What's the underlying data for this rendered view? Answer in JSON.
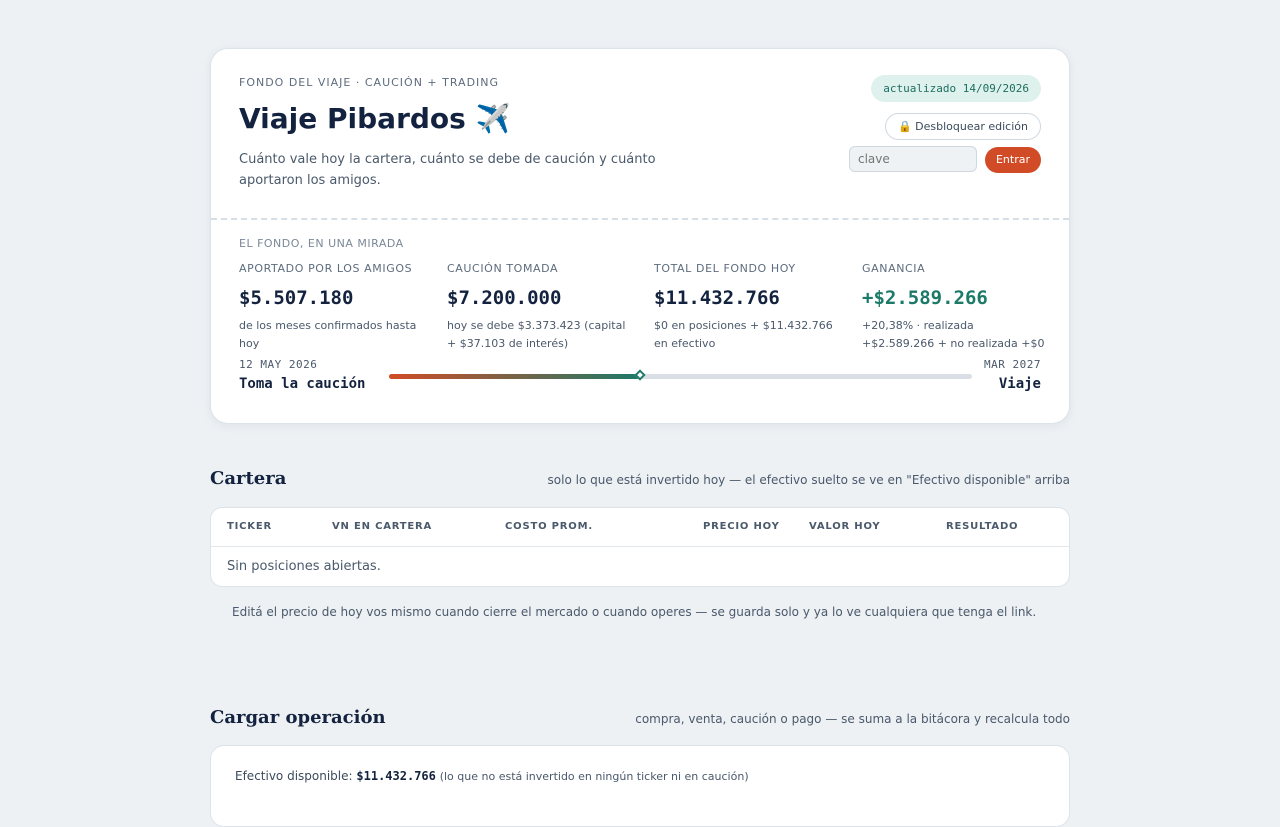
{
  "hero": {
    "eyebrow": "FONDO DEL VIAJE · CAUCIÓN + TRADING",
    "title": "Viaje Pibardos ✈️",
    "subtitle": "Cuánto vale hoy la cartera, cuánto se debe de caución y cuánto aportaron los amigos.",
    "badge": "actualizado 14/09/2026",
    "unlock_label": "🔒 Desbloquear edición",
    "password_placeholder": "clave",
    "enter_label": "Entrar"
  },
  "summary": {
    "label": "EL FONDO, EN UNA MIRADA",
    "stats": [
      {
        "label": "APORTADO POR LOS AMIGOS",
        "value": "$5.507.180",
        "note": "de los meses confirmados hasta hoy"
      },
      {
        "label": "CAUCIÓN TOMADA",
        "value": "$7.200.000",
        "note": "hoy se debe $3.373.423 (capital + $37.103 de interés)"
      },
      {
        "label": "TOTAL DEL FONDO HOY",
        "value": "$11.432.766",
        "note": "$0 en posiciones + $11.432.766 en efectivo"
      },
      {
        "label": "GANANCIA",
        "value": "+$2.589.266",
        "note": "+20,38% · realizada +$2.589.266 + no realizada +$0"
      }
    ],
    "colors": {
      "accent_green": "#1c7a68",
      "accent_orange": "#d14c26"
    }
  },
  "timeline": {
    "start_date": "12 MAY 2026",
    "start_label": "Toma la caución",
    "end_date": "MAR 2027",
    "end_label": "Viaje",
    "progress": 0.43
  },
  "cartera": {
    "title": "Cartera",
    "note": "solo lo que está invertido hoy — el efectivo suelto se ve en \"Efectivo disponible\" arriba",
    "columns": [
      "TICKER",
      "VN EN CARTERA",
      "COSTO PROM.",
      "PRECIO HOY",
      "VALOR HOY",
      "RESULTADO"
    ],
    "empty": "Sin posiciones abiertas.",
    "hint": "Editá el precio de hoy vos mismo cuando cierre el mercado o cuando operes — se guarda solo y ya lo ve cualquiera que tenga el link."
  },
  "operacion": {
    "title": "Cargar operación",
    "note": "compra, venta, caución o pago — se suma a la bitácora y recalcula todo",
    "cash_label": "Efectivo disponible:",
    "cash_value": "$11.432.766",
    "cash_note": "(lo que no está invertido en ningún ticker ni en caución)"
  }
}
